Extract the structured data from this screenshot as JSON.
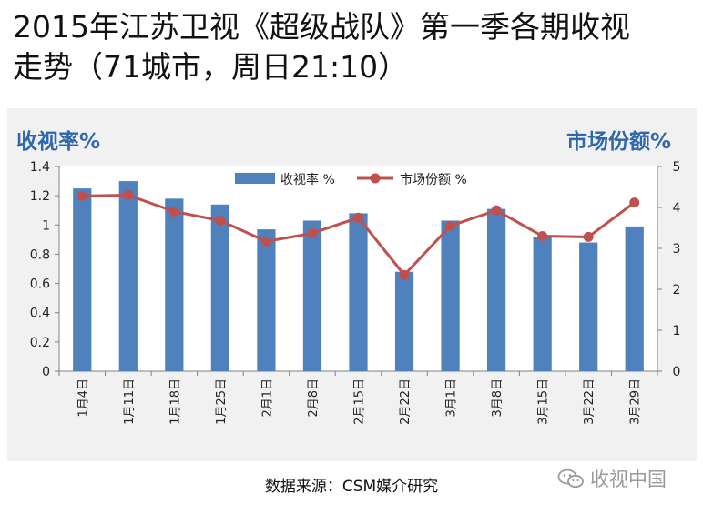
{
  "header": {
    "title_line1": "2015年江苏卫视《超级战队》第一季各期收视",
    "title_line2": "走势（71城市，周日21:10）"
  },
  "axes": {
    "left_title": "收视率%",
    "right_title": "市场份额%"
  },
  "footer": {
    "source": "数据来源：CSM媒介研究",
    "watermark": "收视中国",
    "watermark_icon": "wechat-icon"
  },
  "colors": {
    "bar": "#4f81bd",
    "line": "#c0504d",
    "accent_text": "#2f67ab",
    "panel_bg": "#f1f1f1"
  },
  "chart_data": {
    "type": "bar+line",
    "categories": [
      "1月4日",
      "1月11日",
      "1月18日",
      "1月25日",
      "2月1日",
      "2月8日",
      "2月15日",
      "2月22日",
      "3月1日",
      "3月8日",
      "3月15日",
      "3月22日",
      "3月29日"
    ],
    "series": [
      {
        "name": "收视率  %",
        "type": "bar",
        "axis": "left",
        "values": [
          1.25,
          1.3,
          1.18,
          1.14,
          0.97,
          1.03,
          1.08,
          0.68,
          1.03,
          1.11,
          0.92,
          0.88,
          0.99
        ]
      },
      {
        "name": "市场份额  %",
        "type": "line",
        "axis": "right",
        "values": [
          4.28,
          4.3,
          3.9,
          3.68,
          3.17,
          3.37,
          3.75,
          2.35,
          3.55,
          3.93,
          3.3,
          3.28,
          4.12
        ]
      }
    ],
    "y_left": {
      "min": 0,
      "max": 1.4,
      "ticks": [
        "0",
        "0.2",
        "0.4",
        "0.6",
        "0.8",
        "1",
        "1.2",
        "1.4"
      ]
    },
    "y_right": {
      "min": 0,
      "max": 5,
      "ticks": [
        "0",
        "1",
        "2",
        "3",
        "4",
        "5"
      ]
    },
    "legend": "top-center"
  }
}
